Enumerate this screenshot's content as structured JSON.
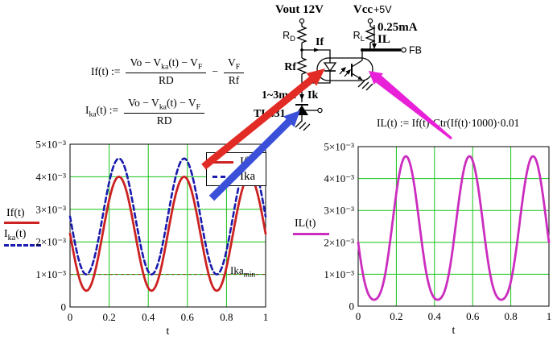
{
  "colors": {
    "curve_if": "#cc2222",
    "curve_ika": "#1a1aae",
    "curve_il": "#cb2dbe",
    "grid": "#17c417",
    "axis": "#000000",
    "marker_line": "#7a4a1e",
    "arrow_red": "#e22b24",
    "arrow_blue": "#3b50d8",
    "arrow_magenta": "#e821d8"
  },
  "circuit": {
    "vout_label": "Vout 12V",
    "vcc_label": "Vcc",
    "vcc_value": "+5V",
    "rd": {
      "base": "R",
      "sub": "D"
    },
    "rl": {
      "base": "R",
      "sub": "L"
    },
    "rf_label": "Rf",
    "if_label": "If",
    "il_value": "0.25mA",
    "il_label": "IL",
    "fb_label": "FB",
    "ik_range": "1~3mA",
    "ik_label": "Ik",
    "tl431_label": "TL431"
  },
  "formulas": {
    "if": {
      "lhs": "If(t) :=",
      "num": "Vo − V~ka~(t) − V~F~",
      "den": "RD",
      "op": "−",
      "num2": "V~F~",
      "den2": "Rf"
    },
    "ika": {
      "lhs": "I~ka~(t) :=",
      "num": "Vo − V~ka~(t) − V~F~",
      "den": "RD"
    },
    "il": "IL(t) := If(t)·Ctr(If(t)·1000)·0.01"
  },
  "trace_labels": {
    "left1": "If(t)",
    "left2": "I~ka~(t)",
    "right": "IL(t)"
  },
  "marker_label": "Ika~min~",
  "legend": {
    "items": [
      {
        "label": "If"
      },
      {
        "label": "Ika"
      }
    ]
  },
  "chart_data": [
    {
      "id": "left-plot",
      "type": "line",
      "title": "",
      "xlabel": "t",
      "ylabel": "",
      "x_range": [
        0,
        1
      ],
      "y_range": [
        0,
        0.005
      ],
      "grid": true,
      "grid_color": "#17c417",
      "x_ticks": [
        0,
        0.2,
        0.4,
        0.6,
        0.8,
        1
      ],
      "x_tick_labels": [
        "0",
        "0.2",
        "0.4",
        "0.6",
        "0.8",
        "1"
      ],
      "y_ticks": [
        0,
        0.001,
        0.002,
        0.003,
        0.004,
        0.005
      ],
      "y_tick_labels": [
        "0",
        "1×10⁻³",
        "2×10⁻³",
        "3×10⁻³",
        "4×10⁻³",
        "5×10⁻³"
      ],
      "legend_position": "top-right",
      "series": [
        {
          "name": "If",
          "color": "#cc2222",
          "style": "solid",
          "model": "sine",
          "offset": 0.00225,
          "amplitude": -0.00175,
          "cycles": 3,
          "min": 0.0005,
          "max": 0.004
        },
        {
          "name": "Ika",
          "color": "#1a1aae",
          "style": "dashed",
          "model": "sine",
          "offset": 0.00278,
          "amplitude": -0.00178,
          "cycles": 3,
          "min": 0.001,
          "max": 0.00456
        }
      ],
      "markers": [
        {
          "label": "Ika min",
          "y": 0.001,
          "color": "#7a4a1e",
          "style": "dashed"
        }
      ]
    },
    {
      "id": "right-plot",
      "type": "line",
      "title": "",
      "xlabel": "t",
      "ylabel": "",
      "x_range": [
        0,
        1
      ],
      "y_range": [
        0,
        0.005
      ],
      "grid": true,
      "grid_color": "#17c417",
      "x_ticks": [
        0,
        0.2,
        0.4,
        0.6,
        0.8,
        1
      ],
      "x_tick_labels": [
        "0",
        "0.2",
        "0.4",
        "0.6",
        "0.8",
        "1"
      ],
      "y_ticks": [
        0,
        0.001,
        0.002,
        0.003,
        0.004,
        0.005
      ],
      "y_tick_labels": [
        "0",
        "1×10⁻³",
        "2×10⁻³",
        "3×10⁻³",
        "4×10⁻³",
        "5×10⁻³"
      ],
      "series": [
        {
          "name": "IL",
          "color": "#cb2dbe",
          "style": "solid",
          "model": "ctr_product",
          "base": {
            "offset": 0.00225,
            "amplitude": -0.00175,
            "cycles": 3
          },
          "ctr_poly": [
            0.223,
            370.5,
            -33143
          ],
          "min": 0.0002,
          "max": 0.0047
        }
      ],
      "markers": []
    }
  ]
}
